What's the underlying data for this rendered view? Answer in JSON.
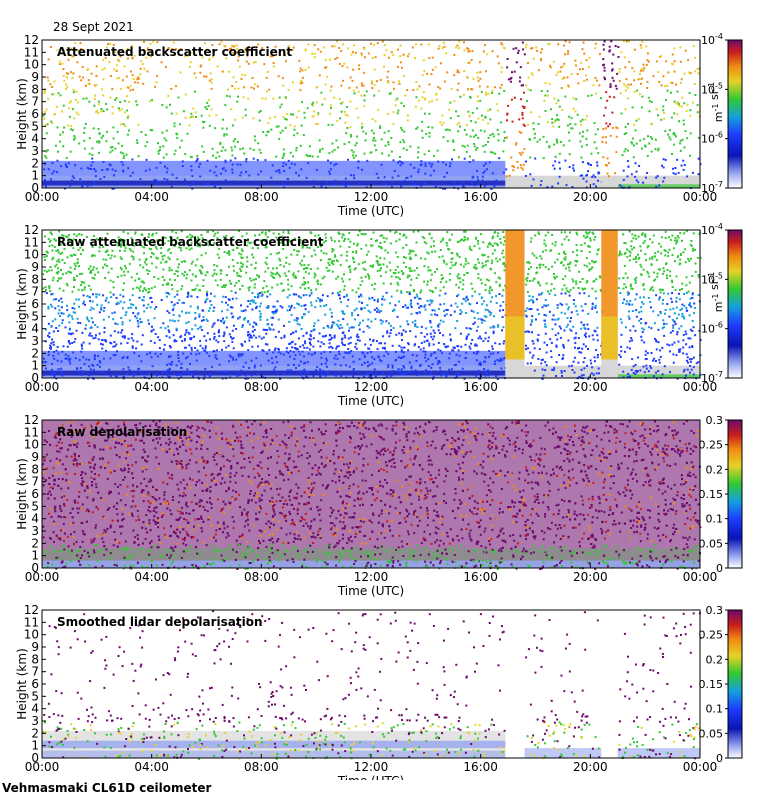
{
  "date_label": "28 Sept 2021",
  "footer_label": "Vehmasmaki CL61D ceilometer",
  "colors": {
    "purple": "#6b0a6b",
    "red": "#c81e1e",
    "orange": "#f08c14",
    "yellow": "#e6d228",
    "green": "#32c832",
    "blue_bright": "#1e3cff",
    "blue_dark": "#0a14b4",
    "blue_light": "#96a5f0",
    "gray": "#d7d7d7"
  },
  "chart_data": [
    {
      "type": "heatmap",
      "title": "Attenuated backscatter coefficient",
      "xlabel": "Time (UTC)",
      "ylabel": "Height (km)",
      "x_ticks": [
        "00:00",
        "04:00",
        "08:00",
        "12:00",
        "16:00",
        "20:00",
        "00:00"
      ],
      "y_ticks": [
        0,
        1,
        2,
        3,
        4,
        5,
        6,
        7,
        8,
        9,
        10,
        11,
        12
      ],
      "xlim_hours": [
        0,
        24
      ],
      "ylim_km": [
        0,
        12
      ],
      "colorbar": {
        "scale": "log",
        "unit_label": "m-1 sr-1",
        "ticks": [
          "10-4",
          "10-5",
          "10-6",
          "10-7"
        ]
      },
      "data_gaps_hours": [
        [
          16.9,
          17.6
        ],
        [
          20.4,
          21.0
        ]
      ]
    },
    {
      "type": "heatmap",
      "title": "Raw attenuated backscatter coefficient",
      "xlabel": "Time (UTC)",
      "ylabel": "Height (km)",
      "x_ticks": [
        "00:00",
        "04:00",
        "08:00",
        "12:00",
        "16:00",
        "20:00",
        "00:00"
      ],
      "y_ticks": [
        0,
        1,
        2,
        3,
        4,
        5,
        6,
        7,
        8,
        9,
        10,
        11,
        12
      ],
      "xlim_hours": [
        0,
        24
      ],
      "ylim_km": [
        0,
        12
      ],
      "colorbar": {
        "scale": "log",
        "unit_label": "m-1 sr-1",
        "ticks": [
          "10-4",
          "10-5",
          "10-6",
          "10-7"
        ]
      },
      "data_gaps_hours": [
        [
          16.9,
          17.6
        ],
        [
          20.4,
          21.0
        ]
      ]
    },
    {
      "type": "heatmap",
      "title": "Raw depolarisation",
      "xlabel": "Time (UTC)",
      "ylabel": "Height (km)",
      "x_ticks": [
        "00:00",
        "04:00",
        "08:00",
        "12:00",
        "16:00",
        "20:00",
        "00:00"
      ],
      "y_ticks": [
        0,
        1,
        2,
        3,
        4,
        5,
        6,
        7,
        8,
        9,
        10,
        11,
        12
      ],
      "xlim_hours": [
        0,
        24
      ],
      "ylim_km": [
        0,
        12
      ],
      "colorbar": {
        "scale": "linear",
        "ticks": [
          "0.3",
          "0.25",
          "0.2",
          "0.15",
          "0.1",
          "0.05",
          "0"
        ]
      }
    },
    {
      "type": "heatmap",
      "title": "Smoothed lidar depolarisation",
      "xlabel": "Time (UTC)",
      "ylabel": "Height (km)",
      "x_ticks": [
        "00:00",
        "04:00",
        "08:00",
        "12:00",
        "16:00",
        "20:00",
        "00:00"
      ],
      "y_ticks": [
        0,
        1,
        2,
        3,
        4,
        5,
        6,
        7,
        8,
        9,
        10,
        11,
        12
      ],
      "xlim_hours": [
        0,
        24
      ],
      "ylim_km": [
        0,
        12
      ],
      "colorbar": {
        "scale": "linear",
        "ticks": [
          "0.3",
          "0.25",
          "0.2",
          "0.15",
          "0.1",
          "0.05",
          "0"
        ]
      },
      "data_gaps_hours": [
        [
          16.9,
          17.6
        ],
        [
          20.4,
          21.0
        ]
      ]
    }
  ]
}
